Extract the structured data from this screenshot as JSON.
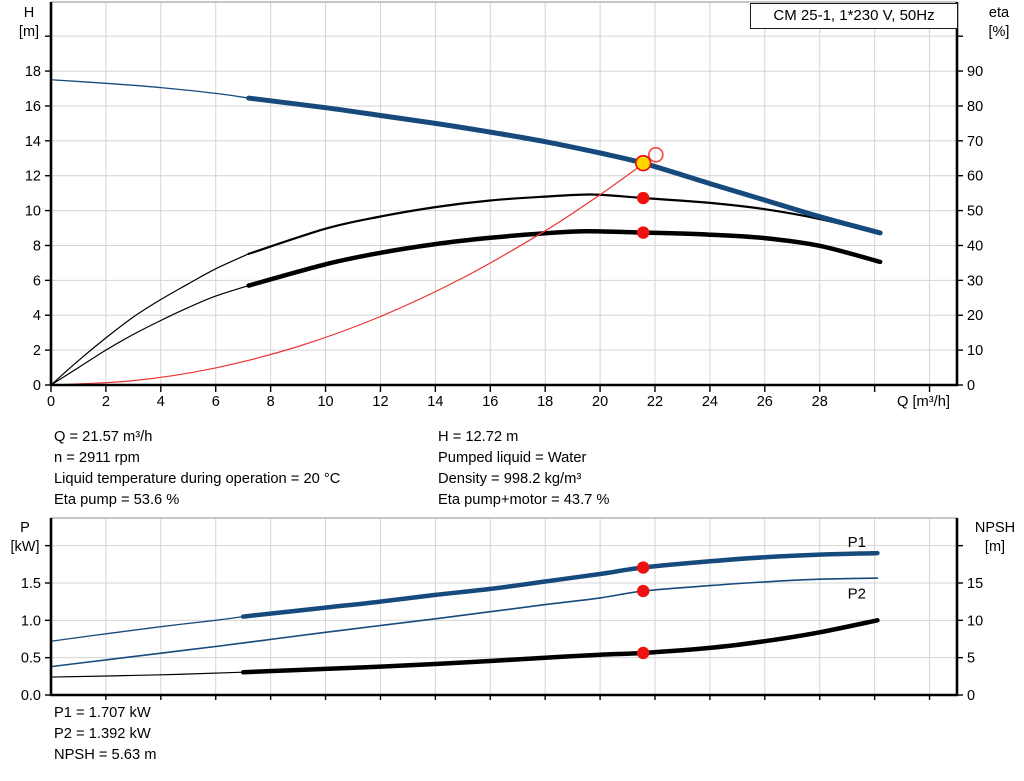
{
  "colors": {
    "curve_blue": "#174a7c",
    "curve_black": "#000000",
    "curve_red": "#ee3333",
    "marker_red": "#ee1111",
    "duty_yellow": "#ffd800",
    "open_red": "#f0524a",
    "grid": "#d4d4d4",
    "frame_top": "#b2b2b2",
    "axis": "#000000"
  },
  "annotations": {
    "left": [
      "Q = 21.57 m³/h",
      "n = 2911 rpm",
      "Liquid temperature during operation = 20 °C",
      "Eta pump = 53.6 %"
    ],
    "right": [
      "H = 12.72 m",
      "Pumped liquid = Water",
      "Density = 998.2 kg/m³",
      "Eta pump+motor = 43.7 %"
    ],
    "bottom": [
      "P1 = 1.707 kW",
      "P2 = 1.392 kW",
      "NPSH = 5.63 m"
    ]
  },
  "chart_data": [
    {
      "id": "qh",
      "type": "line",
      "title": "CM 25-1, 1*230 V, 50Hz",
      "x_axis": {
        "label": "Q [m³/h]",
        "range": [
          0,
          33.0
        ],
        "ticks": [
          [
            0,
            "0"
          ],
          [
            2,
            "2"
          ],
          [
            4,
            "4"
          ],
          [
            6,
            "6"
          ],
          [
            8,
            "8"
          ],
          [
            10,
            "10"
          ],
          [
            12,
            "12"
          ],
          [
            14,
            "14"
          ],
          [
            16,
            "16"
          ],
          [
            18,
            "18"
          ],
          [
            20,
            "20"
          ],
          [
            22,
            "22"
          ],
          [
            24,
            "24"
          ],
          [
            26,
            "26"
          ],
          [
            28,
            "28"
          ]
        ],
        "minor": [
          30,
          32
        ]
      },
      "y_left": {
        "symbol": "H",
        "unit": "[m]",
        "range": [
          0,
          21.96
        ],
        "ticks": [
          [
            0,
            "0"
          ],
          [
            2,
            "2"
          ],
          [
            4,
            "4"
          ],
          [
            6,
            "6"
          ],
          [
            8,
            "8"
          ],
          [
            10,
            "10"
          ],
          [
            12,
            "12"
          ],
          [
            14,
            "14"
          ],
          [
            16,
            "16"
          ],
          [
            18,
            "18"
          ]
        ],
        "minor": [
          20
        ]
      },
      "y_right": {
        "symbol": "eta",
        "unit": "[%]",
        "range": [
          0,
          109.8
        ],
        "ticks": [
          [
            0,
            "0"
          ],
          [
            10,
            "10"
          ],
          [
            20,
            "20"
          ],
          [
            30,
            "30"
          ],
          [
            40,
            "40"
          ],
          [
            50,
            "50"
          ],
          [
            60,
            "60"
          ],
          [
            70,
            "70"
          ],
          [
            80,
            "80"
          ],
          [
            90,
            "90"
          ]
        ],
        "minor": [
          100
        ]
      },
      "series": [
        {
          "name": "eta-pump-curve-low-flow",
          "axis": "right",
          "color": "curve_black",
          "width": 1.2,
          "points": [
            [
              0,
              0
            ],
            [
              1,
              7
            ],
            [
              2,
              13.5
            ],
            [
              3,
              19.5
            ],
            [
              4,
              24.5
            ],
            [
              5,
              29
            ],
            [
              6,
              33.3
            ],
            [
              7.2,
              37.6
            ]
          ]
        },
        {
          "name": "eta-pump-curve",
          "axis": "right",
          "color": "curve_black",
          "width": 2.2,
          "points": [
            [
              7.2,
              37.6
            ],
            [
              10,
              44.8
            ],
            [
              12,
              48.3
            ],
            [
              14,
              51
            ],
            [
              16,
              52.9
            ],
            [
              18,
              54
            ],
            [
              19.7,
              54.6
            ],
            [
              21.57,
              53.6
            ],
            [
              24,
              52.2
            ],
            [
              26,
              50.4
            ],
            [
              28,
              47.6
            ],
            [
              30.2,
              43.4
            ]
          ]
        },
        {
          "name": "eta-pump-motor-curve-low-flow",
          "axis": "right",
          "color": "curve_black",
          "width": 1.2,
          "points": [
            [
              0,
              0
            ],
            [
              1,
              5
            ],
            [
              2,
              10
            ],
            [
              3,
              14.5
            ],
            [
              4,
              18.5
            ],
            [
              5,
              22.2
            ],
            [
              6,
              25.5
            ],
            [
              7.2,
              28.5
            ]
          ]
        },
        {
          "name": "eta-pump-motor-curve",
          "axis": "right",
          "color": "curve_black",
          "width": 4.5,
          "points": [
            [
              7.2,
              28.5
            ],
            [
              10,
              34.6
            ],
            [
              12,
              37.9
            ],
            [
              14,
              40.4
            ],
            [
              16,
              42.2
            ],
            [
              18,
              43.5
            ],
            [
              19.5,
              44.1
            ],
            [
              21.57,
              43.7
            ],
            [
              24,
              43.1
            ],
            [
              26,
              42.1
            ],
            [
              28,
              39.9
            ],
            [
              30.2,
              35.3
            ]
          ]
        },
        {
          "name": "system-curve",
          "axis": "left",
          "color": "curve_red",
          "width": 1.2,
          "points": [
            [
              0,
              0
            ],
            [
              3,
              0.25
            ],
            [
              6,
              0.98
            ],
            [
              9,
              2.21
            ],
            [
              12,
              3.93
            ],
            [
              15,
              6.14
            ],
            [
              18,
              8.84
            ],
            [
              20,
              10.91
            ],
            [
              21.57,
              12.69
            ],
            [
              21.8,
              12.97
            ]
          ]
        },
        {
          "name": "head-curve-low-flow",
          "axis": "left",
          "color": "curve_blue",
          "width": 1.3,
          "points": [
            [
              0,
              17.5
            ],
            [
              2,
              17.3
            ],
            [
              4,
              17.05
            ],
            [
              6,
              16.72
            ],
            [
              7.2,
              16.45
            ]
          ]
        },
        {
          "name": "head-curve",
          "axis": "left",
          "color": "curve_blue",
          "width": 5,
          "points": [
            [
              7.2,
              16.45
            ],
            [
              10,
              15.9
            ],
            [
              12,
              15.45
            ],
            [
              14,
              15.0
            ],
            [
              16,
              14.5
            ],
            [
              18,
              13.95
            ],
            [
              20,
              13.3
            ],
            [
              21.57,
              12.72
            ],
            [
              24,
              11.55
            ],
            [
              26,
              10.6
            ],
            [
              28,
              9.65
            ],
            [
              30.2,
              8.72
            ]
          ]
        }
      ],
      "markers": [
        {
          "name": "operating-point-eta-pump",
          "axis": "right",
          "x": 21.57,
          "y": 53.6,
          "style": "dot"
        },
        {
          "name": "operating-point-eta-pump-motor",
          "axis": "right",
          "x": 21.57,
          "y": 43.7,
          "style": "dot"
        },
        {
          "name": "requested-duty-point",
          "axis": "left",
          "x": 22.03,
          "y": 13.2,
          "style": "open"
        },
        {
          "name": "operating-point-head",
          "axis": "left",
          "x": 21.57,
          "y": 12.72,
          "style": "duty"
        }
      ]
    },
    {
      "id": "power",
      "type": "line",
      "title": "",
      "x_axis": {
        "label": "",
        "range": [
          0,
          33.0
        ],
        "ticks": [],
        "minor": [
          2,
          4,
          6,
          8,
          10,
          12,
          14,
          16,
          18,
          20,
          22,
          24,
          26,
          28,
          30,
          32
        ]
      },
      "y_left": {
        "symbol": "P",
        "unit": "[kW]",
        "range": [
          0,
          2.37
        ],
        "ticks": [
          [
            0,
            "0.0"
          ],
          [
            0.5,
            "0.5"
          ],
          [
            1,
            "1.0"
          ],
          [
            1.5,
            "1.5"
          ]
        ],
        "minor": [
          2.0
        ]
      },
      "y_right": {
        "symbol": "NPSH",
        "unit": "[m]",
        "range": [
          0,
          23.7
        ],
        "ticks": [
          [
            0,
            "0"
          ],
          [
            5,
            "5"
          ],
          [
            10,
            "10"
          ],
          [
            15,
            "15"
          ]
        ],
        "minor": [
          20
        ]
      },
      "series": [
        {
          "name": "p2-power-curve",
          "axis": "left",
          "color": "curve_blue",
          "width": 1.6,
          "points": [
            [
              0,
              0.38
            ],
            [
              2,
              0.47
            ],
            [
              4,
              0.56
            ],
            [
              6,
              0.65
            ],
            [
              8,
              0.745
            ],
            [
              10,
              0.84
            ],
            [
              12,
              0.93
            ],
            [
              14,
              1.02
            ],
            [
              16,
              1.115
            ],
            [
              18,
              1.21
            ],
            [
              20,
              1.3
            ],
            [
              21.57,
              1.392
            ],
            [
              24,
              1.465
            ],
            [
              26,
              1.515
            ],
            [
              28,
              1.55
            ],
            [
              30.1,
              1.565
            ]
          ]
        },
        {
          "name": "p1-power-curve-low-flow",
          "axis": "left",
          "color": "curve_blue",
          "width": 1.3,
          "points": [
            [
              0,
              0.72
            ],
            [
              2,
              0.82
            ],
            [
              4,
              0.915
            ],
            [
              6,
              1.0
            ],
            [
              7,
              1.05
            ]
          ]
        },
        {
          "name": "p1-power-curve",
          "axis": "left",
          "color": "curve_blue",
          "width": 4.5,
          "points": [
            [
              7,
              1.05
            ],
            [
              10,
              1.17
            ],
            [
              12,
              1.25
            ],
            [
              14,
              1.34
            ],
            [
              16,
              1.42
            ],
            [
              18,
              1.52
            ],
            [
              20,
              1.62
            ],
            [
              21.57,
              1.707
            ],
            [
              24,
              1.79
            ],
            [
              26,
              1.845
            ],
            [
              28,
              1.88
            ],
            [
              30.1,
              1.9
            ]
          ]
        },
        {
          "name": "npsh-curve-low-flow",
          "axis": "right",
          "color": "curve_black",
          "width": 1.2,
          "points": [
            [
              0,
              2.4
            ],
            [
              4,
              2.7
            ],
            [
              7,
              3.05
            ]
          ]
        },
        {
          "name": "npsh-curve",
          "axis": "right",
          "color": "curve_black",
          "width": 4.5,
          "points": [
            [
              7,
              3.05
            ],
            [
              10,
              3.5
            ],
            [
              12,
              3.8
            ],
            [
              14,
              4.15
            ],
            [
              16,
              4.55
            ],
            [
              18,
              5.0
            ],
            [
              20,
              5.4
            ],
            [
              21.57,
              5.63
            ],
            [
              24,
              6.3
            ],
            [
              26,
              7.2
            ],
            [
              28,
              8.4
            ],
            [
              30.1,
              10.0
            ]
          ]
        }
      ],
      "markers": [
        {
          "name": "operating-point-p1",
          "axis": "left",
          "x": 21.57,
          "y": 1.707,
          "style": "dot"
        },
        {
          "name": "operating-point-p2",
          "axis": "left",
          "x": 21.57,
          "y": 1.392,
          "style": "dot"
        },
        {
          "name": "operating-point-npsh",
          "axis": "right",
          "x": 21.57,
          "y": 5.63,
          "style": "dot"
        }
      ],
      "labels": [
        {
          "text": "P1",
          "x": 29.35,
          "y": 2.05,
          "axis": "left"
        },
        {
          "text": "P2",
          "x": 29.35,
          "y": 1.36,
          "axis": "left"
        }
      ]
    }
  ]
}
